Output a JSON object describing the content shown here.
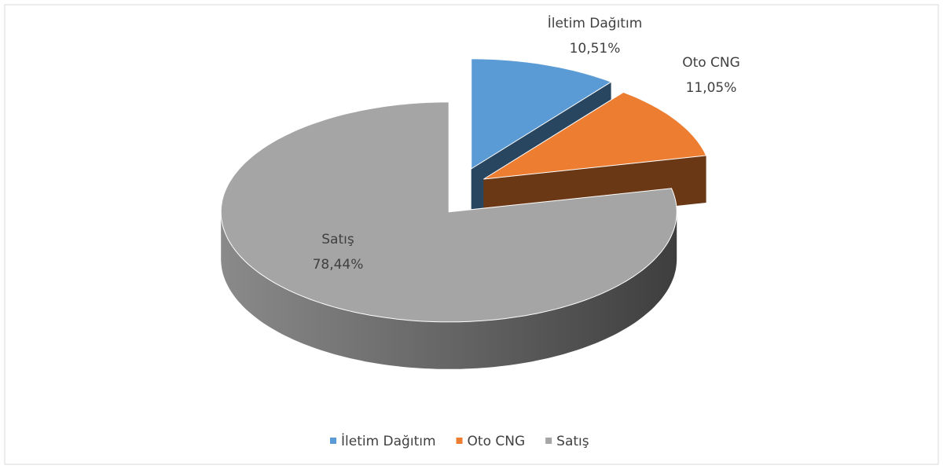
{
  "chart_data": {
    "type": "pie3d",
    "categories": [
      "İletim Dağıtım",
      "Oto CNG",
      "Satış"
    ],
    "values": [
      10.51,
      11.05,
      78.44
    ],
    "value_labels": [
      "10,51%",
      "11,05%",
      "78,44%"
    ],
    "colors": [
      "#5b9bd5",
      "#ed7d31",
      "#a5a5a5"
    ],
    "legend": "bottom"
  }
}
